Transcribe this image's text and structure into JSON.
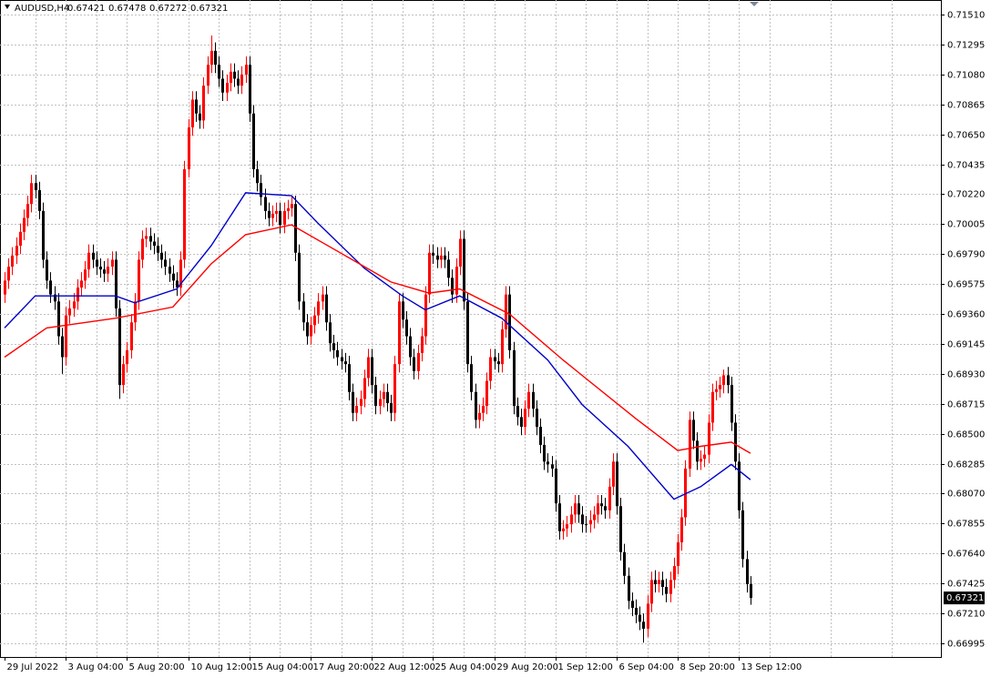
{
  "chart_data": {
    "type": "candlestick",
    "title": "AUDUSD,H4",
    "up_color": "#ff0000",
    "down_color": "#000000",
    "grid": true,
    "xlim": [
      -1.2,
      244.8
    ],
    "ylim": [
      0.66897,
      0.71615
    ],
    "yticks": [
      {
        "value": 0.7151,
        "label": "0.71510"
      },
      0.71295,
      {
        "value": 0.7108,
        "label": "0.71080"
      },
      0.70865,
      {
        "value": 0.7065,
        "label": "0.70650"
      },
      0.70435,
      {
        "value": 0.7022,
        "label": "0.70220"
      },
      0.70005,
      {
        "value": 0.6979,
        "label": "0.69790"
      },
      0.69575,
      {
        "value": 0.6936,
        "label": "0.69360"
      },
      0.69145,
      {
        "value": 0.6893,
        "label": "0.68930"
      },
      0.68715,
      {
        "value": 0.685,
        "label": "0.68500"
      },
      0.68285,
      {
        "value": 0.6807,
        "label": "0.68070"
      },
      0.67855,
      {
        "value": 0.6764,
        "label": "0.67640"
      },
      0.67425,
      {
        "value": 0.6721,
        "label": "0.67210"
      },
      0.66995
    ],
    "xticks": [
      {
        "value": 0,
        "label": "29 Jul 2022"
      },
      {
        "value": 16,
        "label": "3 Aug 04:00"
      },
      {
        "value": 32,
        "label": "5 Aug 20:00"
      },
      {
        "value": 48,
        "label": "10 Aug 12:00"
      },
      {
        "value": 64,
        "label": "15 Aug 04:00"
      },
      {
        "value": 80,
        "label": "17 Aug 20:00"
      },
      {
        "value": 96,
        "label": "22 Aug 12:00"
      },
      {
        "value": 112,
        "label": "25 Aug 04:00"
      },
      {
        "value": 128,
        "label": "29 Aug 20:00"
      },
      {
        "value": 144,
        "label": "1 Sep 12:00"
      },
      {
        "value": 160,
        "label": "6 Sep 04:00"
      },
      {
        "value": 176,
        "label": "8 Sep 20:00"
      },
      {
        "value": 192,
        "label": "13 Sep 12:00"
      }
    ],
    "ohlc": [
      [
        0.695,
        0.6966,
        0.6944,
        0.696
      ],
      [
        0.696,
        0.6976,
        0.6954,
        0.697
      ],
      [
        0.697,
        0.6984,
        0.6964,
        0.6978
      ],
      [
        0.6978,
        0.6991,
        0.6972,
        0.6985
      ],
      [
        0.6985,
        0.7001,
        0.6979,
        0.6995
      ],
      [
        0.6995,
        0.7011,
        0.6989,
        0.7005
      ],
      [
        0.7005,
        0.7021,
        0.6999,
        0.7015
      ],
      [
        0.7015,
        0.7036,
        0.7009,
        0.703
      ],
      [
        0.703,
        0.7036,
        0.7019,
        0.7025
      ],
      [
        0.7025,
        0.7031,
        0.7004,
        0.701
      ],
      [
        0.701,
        0.7016,
        0.6969,
        0.6975
      ],
      [
        0.6975,
        0.6981,
        0.6954,
        0.696
      ],
      [
        0.696,
        0.6966,
        0.6944,
        0.695
      ],
      [
        0.695,
        0.6956,
        0.6939,
        0.6945
      ],
      [
        0.6945,
        0.6951,
        0.6914,
        0.692
      ],
      [
        0.692,
        0.6926,
        0.6893,
        0.6905
      ],
      [
        0.6905,
        0.6941,
        0.6899,
        0.6935
      ],
      [
        0.6935,
        0.6946,
        0.6929,
        0.694
      ],
      [
        0.694,
        0.6951,
        0.6934,
        0.6945
      ],
      [
        0.6945,
        0.6961,
        0.6939,
        0.6955
      ],
      [
        0.6955,
        0.6966,
        0.6949,
        0.696
      ],
      [
        0.696,
        0.6974,
        0.6954,
        0.6968
      ],
      [
        0.6968,
        0.6986,
        0.6962,
        0.698
      ],
      [
        0.698,
        0.6986,
        0.6969,
        0.6975
      ],
      [
        0.6975,
        0.6981,
        0.6964,
        0.697
      ],
      [
        0.697,
        0.6976,
        0.6962,
        0.6968
      ],
      [
        0.6968,
        0.6974,
        0.6959,
        0.6965
      ],
      [
        0.6965,
        0.6976,
        0.6959,
        0.697
      ],
      [
        0.697,
        0.6981,
        0.6964,
        0.6975
      ],
      [
        0.6975,
        0.6981,
        0.6934,
        0.694
      ],
      [
        0.694,
        0.6946,
        0.6875,
        0.6885
      ],
      [
        0.6885,
        0.6906,
        0.6879,
        0.69
      ],
      [
        0.69,
        0.6916,
        0.6894,
        0.691
      ],
      [
        0.691,
        0.6936,
        0.6904,
        0.693
      ],
      [
        0.693,
        0.6951,
        0.6924,
        0.6945
      ],
      [
        0.6945,
        0.6981,
        0.6939,
        0.6975
      ],
      [
        0.6975,
        0.6996,
        0.6969,
        0.699
      ],
      [
        0.699,
        0.6998,
        0.6984,
        0.6992
      ],
      [
        0.6992,
        0.6998,
        0.6982,
        0.6988
      ],
      [
        0.6988,
        0.6994,
        0.6979,
        0.6985
      ],
      [
        0.6985,
        0.6991,
        0.6974,
        0.698
      ],
      [
        0.698,
        0.6986,
        0.6969,
        0.6975
      ],
      [
        0.6975,
        0.6981,
        0.6964,
        0.697
      ],
      [
        0.697,
        0.6976,
        0.6959,
        0.6965
      ],
      [
        0.6965,
        0.6971,
        0.6954,
        0.696
      ],
      [
        0.696,
        0.6966,
        0.6949,
        0.6955
      ],
      [
        0.6955,
        0.6981,
        0.6949,
        0.6975
      ],
      [
        0.6975,
        0.7046,
        0.6969,
        0.704
      ],
      [
        0.704,
        0.7076,
        0.7034,
        0.707
      ],
      [
        0.707,
        0.7096,
        0.7064,
        0.709
      ],
      [
        0.709,
        0.7096,
        0.7074,
        0.708
      ],
      [
        0.708,
        0.7086,
        0.7069,
        0.7075
      ],
      [
        0.7075,
        0.7106,
        0.7069,
        0.71
      ],
      [
        0.71,
        0.7121,
        0.7094,
        0.7115
      ],
      [
        0.7115,
        0.7136,
        0.7109,
        0.7125
      ],
      [
        0.7125,
        0.7131,
        0.7109,
        0.7115
      ],
      [
        0.7115,
        0.7121,
        0.7099,
        0.7105
      ],
      [
        0.7105,
        0.7111,
        0.7089,
        0.7095
      ],
      [
        0.7095,
        0.7108,
        0.7089,
        0.7102
      ],
      [
        0.7102,
        0.7116,
        0.7096,
        0.711
      ],
      [
        0.711,
        0.7116,
        0.7099,
        0.7105
      ],
      [
        0.7105,
        0.7111,
        0.7094,
        0.71
      ],
      [
        0.71,
        0.7114,
        0.7094,
        0.7108
      ],
      [
        0.7108,
        0.7121,
        0.7102,
        0.7115
      ],
      [
        0.7115,
        0.7121,
        0.7074,
        0.708
      ],
      [
        0.708,
        0.7086,
        0.7034,
        0.704
      ],
      [
        0.704,
        0.7046,
        0.7024,
        0.703
      ],
      [
        0.703,
        0.7036,
        0.7014,
        0.702
      ],
      [
        0.702,
        0.7026,
        0.7004,
        0.701
      ],
      [
        0.701,
        0.7016,
        0.6999,
        0.7005
      ],
      [
        0.7005,
        0.7014,
        0.6999,
        0.7008
      ],
      [
        0.7008,
        0.7016,
        0.7002,
        0.701
      ],
      [
        0.701,
        0.7016,
        0.6994,
        0.7
      ],
      [
        0.7,
        0.7016,
        0.6994,
        0.701
      ],
      [
        0.701,
        0.7018,
        0.7004,
        0.7012
      ],
      [
        0.7012,
        0.7021,
        0.7006,
        0.7015
      ],
      [
        0.7015,
        0.7021,
        0.6974,
        0.698
      ],
      [
        0.698,
        0.6986,
        0.6939,
        0.6945
      ],
      [
        0.6945,
        0.6951,
        0.6924,
        0.693
      ],
      [
        0.693,
        0.6936,
        0.6914,
        0.692
      ],
      [
        0.692,
        0.6934,
        0.6914,
        0.6928
      ],
      [
        0.6928,
        0.6941,
        0.6922,
        0.6935
      ],
      [
        0.6935,
        0.6951,
        0.6929,
        0.6945
      ],
      [
        0.6945,
        0.6956,
        0.6939,
        0.695
      ],
      [
        0.695,
        0.6956,
        0.6924,
        0.693
      ],
      [
        0.693,
        0.6936,
        0.6909,
        0.6915
      ],
      [
        0.6915,
        0.6921,
        0.6904,
        0.691
      ],
      [
        0.691,
        0.6916,
        0.6899,
        0.6905
      ],
      [
        0.6905,
        0.6911,
        0.6896,
        0.6902
      ],
      [
        0.6902,
        0.6908,
        0.6894,
        0.69
      ],
      [
        0.69,
        0.6906,
        0.6874,
        0.688
      ],
      [
        0.688,
        0.6886,
        0.6859,
        0.6865
      ],
      [
        0.6865,
        0.6876,
        0.6859,
        0.687
      ],
      [
        0.687,
        0.6881,
        0.6864,
        0.6875
      ],
      [
        0.6875,
        0.6896,
        0.6869,
        0.689
      ],
      [
        0.689,
        0.6911,
        0.6884,
        0.6905
      ],
      [
        0.6905,
        0.6911,
        0.6879,
        0.6885
      ],
      [
        0.6885,
        0.6891,
        0.6864,
        0.687
      ],
      [
        0.687,
        0.6881,
        0.6864,
        0.6875
      ],
      [
        0.6875,
        0.6886,
        0.6869,
        0.688
      ],
      [
        0.688,
        0.6886,
        0.6866,
        0.6872
      ],
      [
        0.6872,
        0.6878,
        0.6859,
        0.6865
      ],
      [
        0.6865,
        0.6906,
        0.6859,
        0.69
      ],
      [
        0.69,
        0.6951,
        0.6894,
        0.6945
      ],
      [
        0.6945,
        0.6951,
        0.6926,
        0.6932
      ],
      [
        0.6932,
        0.6938,
        0.6914,
        0.692
      ],
      [
        0.692,
        0.6926,
        0.6899,
        0.6905
      ],
      [
        0.6905,
        0.6911,
        0.6889,
        0.6895
      ],
      [
        0.6895,
        0.6914,
        0.6889,
        0.6908
      ],
      [
        0.6908,
        0.6926,
        0.6902,
        0.692
      ],
      [
        0.692,
        0.6956,
        0.6914,
        0.695
      ],
      [
        0.695,
        0.6986,
        0.6944,
        0.698
      ],
      [
        0.698,
        0.6986,
        0.6972,
        0.6978
      ],
      [
        0.6978,
        0.6984,
        0.6969,
        0.6975
      ],
      [
        0.6975,
        0.6984,
        0.6969,
        0.6978
      ],
      [
        0.6978,
        0.6984,
        0.6969,
        0.6975
      ],
      [
        0.6975,
        0.6981,
        0.6956,
        0.6962
      ],
      [
        0.6962,
        0.6968,
        0.6944,
        0.695
      ],
      [
        0.695,
        0.6976,
        0.6944,
        0.697
      ],
      [
        0.697,
        0.6996,
        0.6964,
        0.699
      ],
      [
        0.699,
        0.6996,
        0.6939,
        0.6945
      ],
      [
        0.6945,
        0.6951,
        0.6894,
        0.69
      ],
      [
        0.69,
        0.6906,
        0.6874,
        0.688
      ],
      [
        0.688,
        0.6886,
        0.6854,
        0.686
      ],
      [
        0.686,
        0.6871,
        0.6854,
        0.6865
      ],
      [
        0.6865,
        0.6876,
        0.6859,
        0.687
      ],
      [
        0.687,
        0.6894,
        0.6864,
        0.6888
      ],
      [
        0.6888,
        0.6911,
        0.6882,
        0.6905
      ],
      [
        0.6905,
        0.6911,
        0.6896,
        0.6902
      ],
      [
        0.6902,
        0.6908,
        0.6894,
        0.69
      ],
      [
        0.69,
        0.6931,
        0.6894,
        0.6925
      ],
      [
        0.6925,
        0.6956,
        0.6919,
        0.695
      ],
      [
        0.695,
        0.6956,
        0.6904,
        0.691
      ],
      [
        0.691,
        0.6916,
        0.6864,
        0.687
      ],
      [
        0.687,
        0.6876,
        0.6856,
        0.6862
      ],
      [
        0.6862,
        0.6868,
        0.6849,
        0.6855
      ],
      [
        0.6855,
        0.6874,
        0.6849,
        0.6868
      ],
      [
        0.6868,
        0.6886,
        0.6862,
        0.688
      ],
      [
        0.688,
        0.6886,
        0.6862,
        0.6868
      ],
      [
        0.6868,
        0.6874,
        0.6849,
        0.6855
      ],
      [
        0.6855,
        0.6861,
        0.6836,
        0.6842
      ],
      [
        0.6842,
        0.6848,
        0.6824,
        0.683
      ],
      [
        0.683,
        0.6836,
        0.6822,
        0.6828
      ],
      [
        0.6828,
        0.6834,
        0.6819,
        0.6825
      ],
      [
        0.6825,
        0.6831,
        0.6794,
        0.68
      ],
      [
        0.68,
        0.6806,
        0.6774,
        0.678
      ],
      [
        0.678,
        0.6788,
        0.6774,
        0.6782
      ],
      [
        0.6782,
        0.6791,
        0.6776,
        0.6785
      ],
      [
        0.6785,
        0.6798,
        0.6779,
        0.6792
      ],
      [
        0.6792,
        0.6806,
        0.6786,
        0.68
      ],
      [
        0.68,
        0.6806,
        0.6786,
        0.6792
      ],
      [
        0.6792,
        0.6798,
        0.6779,
        0.6785
      ],
      [
        0.6785,
        0.6791,
        0.6779,
        0.6785
      ],
      [
        0.6785,
        0.6795,
        0.6779,
        0.6788
      ],
      [
        0.6788,
        0.6798,
        0.6782,
        0.6792
      ],
      [
        0.6792,
        0.6806,
        0.6786,
        0.68
      ],
      [
        0.68,
        0.6806,
        0.6792,
        0.6798
      ],
      [
        0.6798,
        0.6804,
        0.6789,
        0.6795
      ],
      [
        0.6795,
        0.6818,
        0.6789,
        0.6812
      ],
      [
        0.6812,
        0.6836,
        0.6806,
        0.683
      ],
      [
        0.683,
        0.6836,
        0.6792,
        0.6798
      ],
      [
        0.6798,
        0.6804,
        0.6759,
        0.6765
      ],
      [
        0.6765,
        0.6771,
        0.6742,
        0.6748
      ],
      [
        0.6748,
        0.6754,
        0.6724,
        0.673
      ],
      [
        0.673,
        0.6736,
        0.6719,
        0.6725
      ],
      [
        0.6725,
        0.6731,
        0.6714,
        0.672
      ],
      [
        0.672,
        0.6726,
        0.6709,
        0.6715
      ],
      [
        0.6715,
        0.6721,
        0.67,
        0.671
      ],
      [
        0.671,
        0.6734,
        0.6704,
        0.6728
      ],
      [
        0.6728,
        0.6751,
        0.6722,
        0.6745
      ],
      [
        0.6745,
        0.6752,
        0.6736,
        0.6742
      ],
      [
        0.6742,
        0.6751,
        0.6736,
        0.6745
      ],
      [
        0.6745,
        0.6751,
        0.6734,
        0.674
      ],
      [
        0.674,
        0.6746,
        0.6729,
        0.6735
      ],
      [
        0.6735,
        0.6751,
        0.6729,
        0.6745
      ],
      [
        0.6745,
        0.6761,
        0.6739,
        0.6755
      ],
      [
        0.6755,
        0.6778,
        0.6749,
        0.6772
      ],
      [
        0.6772,
        0.6796,
        0.6766,
        0.679
      ],
      [
        0.679,
        0.6831,
        0.6784,
        0.6825
      ],
      [
        0.6825,
        0.6866,
        0.6819,
        0.686
      ],
      [
        0.686,
        0.6866,
        0.6839,
        0.6845
      ],
      [
        0.6845,
        0.6851,
        0.6824,
        0.683
      ],
      [
        0.683,
        0.6838,
        0.6824,
        0.6832
      ],
      [
        0.6832,
        0.6841,
        0.6826,
        0.6835
      ],
      [
        0.6835,
        0.6864,
        0.6829,
        0.6858
      ],
      [
        0.6858,
        0.6886,
        0.6852,
        0.688
      ],
      [
        0.688,
        0.6888,
        0.6874,
        0.6882
      ],
      [
        0.6882,
        0.6891,
        0.6876,
        0.6885
      ],
      [
        0.6885,
        0.6896,
        0.6879,
        0.6892
      ],
      [
        0.6892,
        0.6898,
        0.6879,
        0.6885
      ],
      [
        0.6885,
        0.6891,
        0.6852,
        0.6858
      ],
      [
        0.6858,
        0.6864,
        0.6824,
        0.683
      ],
      [
        0.683,
        0.6836,
        0.6789,
        0.6795
      ],
      [
        0.6795,
        0.6801,
        0.6754,
        0.676
      ],
      [
        0.676,
        0.6766,
        0.6736,
        0.6742
      ],
      [
        0.67421,
        0.67478,
        0.67272,
        0.67321
      ]
    ],
    "moving_averages": [
      {
        "color": "#0000c8",
        "x": [
          0,
          8,
          20,
          29,
          34,
          45,
          54,
          63,
          75,
          82,
          94,
          104,
          110,
          119,
          130,
          142,
          151,
          163,
          175,
          182,
          190,
          195
        ],
        "values": [
          0.6926,
          0.6949,
          0.6949,
          0.6949,
          0.6944,
          0.6954,
          0.6985,
          0.7023,
          0.7021,
          0.7001,
          0.6969,
          0.6949,
          0.6939,
          0.6949,
          0.6933,
          0.6903,
          0.6871,
          0.6841,
          0.6803,
          0.6812,
          0.6828,
          0.6817
        ]
      },
      {
        "color": "#ff0000",
        "x": [
          0,
          11,
          29,
          44,
          54,
          63,
          75,
          89,
          101,
          111,
          119,
          132,
          146,
          165,
          176,
          182,
          190,
          195
        ],
        "values": [
          0.6905,
          0.6926,
          0.6933,
          0.6941,
          0.6972,
          0.6993,
          0.7,
          0.6978,
          0.6959,
          0.6951,
          0.6954,
          0.6936,
          0.6903,
          0.6861,
          0.6838,
          0.6841,
          0.6844,
          0.6836
        ]
      }
    ]
  }
}
